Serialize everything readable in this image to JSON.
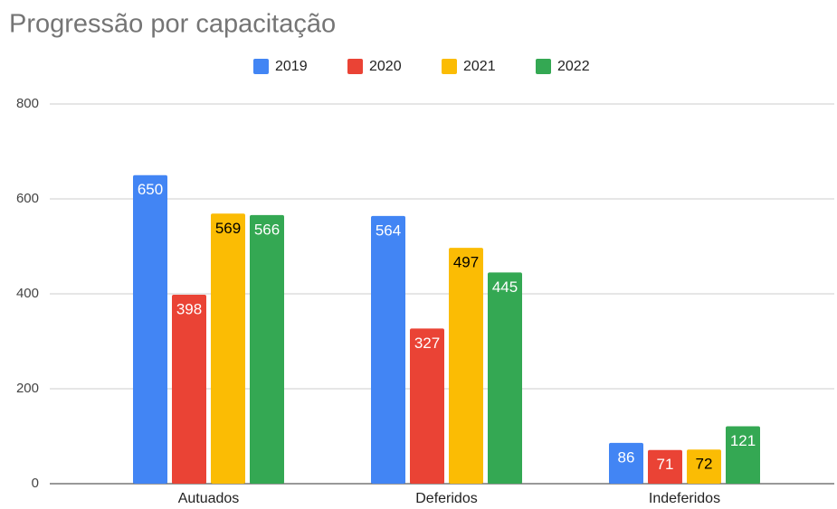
{
  "chart_data": {
    "type": "bar",
    "title": "Progressão por capacitação",
    "categories": [
      "Autuados",
      "Deferidos",
      "Indeferidos"
    ],
    "series": [
      {
        "name": "2019",
        "color": "#4285f4",
        "label_color": "#ffffff",
        "values": [
          650,
          564,
          86
        ]
      },
      {
        "name": "2020",
        "color": "#ea4335",
        "label_color": "#ffffff",
        "values": [
          398,
          327,
          71
        ]
      },
      {
        "name": "2021",
        "color": "#fbbc04",
        "label_color": "#000000",
        "values": [
          569,
          497,
          72
        ]
      },
      {
        "name": "2022",
        "color": "#34a853",
        "label_color": "#ffffff",
        "values": [
          566,
          445,
          121
        ]
      }
    ],
    "ylim": [
      0,
      800
    ],
    "yticks": [
      0,
      200,
      400,
      600,
      800
    ],
    "grid": true,
    "legend": "top"
  }
}
